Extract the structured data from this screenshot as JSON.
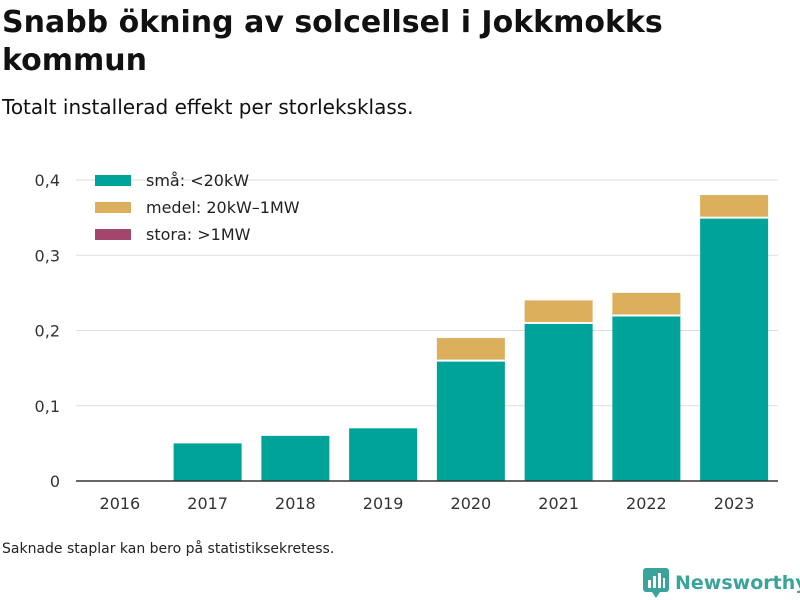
{
  "title": "Snabb ökning av solcellsel i Jokkmokks kommun",
  "subtitle": "Totalt installerad effekt per storleksklass.",
  "footnote": "Saknade staplar kan bero på statistiksekretess.",
  "brand": "Newsworthy",
  "colors": {
    "small": "#00a398",
    "medium": "#dbaf5c",
    "large": "#a3466e",
    "grid": "#dddddd",
    "brand": "#3aa49a"
  },
  "chart_data": {
    "type": "bar",
    "stacked": true,
    "categories": [
      "2016",
      "2017",
      "2018",
      "2019",
      "2020",
      "2021",
      "2022",
      "2023"
    ],
    "series": [
      {
        "name": "små: <20kW",
        "color": "#00a398",
        "values": [
          0,
          0.05,
          0.06,
          0.07,
          0.16,
          0.21,
          0.22,
          0.35
        ]
      },
      {
        "name": "medel: 20kW–1MW",
        "color": "#dbaf5c",
        "values": [
          0,
          0,
          0,
          0,
          0.03,
          0.03,
          0.03,
          0.03
        ]
      },
      {
        "name": "stora: >1MW",
        "color": "#a3466e",
        "values": [
          0,
          0,
          0,
          0,
          0,
          0,
          0,
          0
        ]
      }
    ],
    "yticks": [
      "0",
      "0,1",
      "0,2",
      "0,3",
      "0,4"
    ],
    "ytick_values": [
      0,
      0.1,
      0.2,
      0.3,
      0.4
    ],
    "ylim": [
      0,
      0.4
    ],
    "legend_position": "top-left",
    "grid": true
  }
}
